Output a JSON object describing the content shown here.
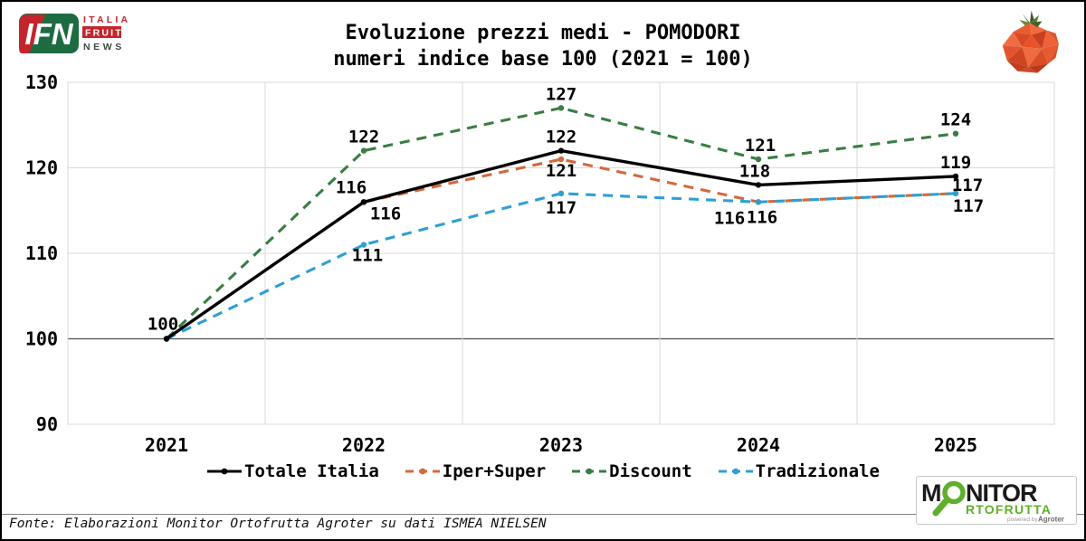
{
  "header": {
    "ifn_logo": {
      "acronym": "IFN",
      "word1": "ITALIA",
      "word2": "FRUIT",
      "word3": "NEWS"
    },
    "tomato_icon": "low-poly-tomato"
  },
  "chart_data": {
    "type": "line",
    "title": "Evoluzione prezzi medi - POMODORI",
    "subtitle": "numeri indice base 100 (2021 = 100)",
    "categories": [
      "2021",
      "2022",
      "2023",
      "2024",
      "2025"
    ],
    "series": [
      {
        "name": "Totale Italia",
        "values": [
          100,
          116,
          122,
          118,
          119
        ],
        "color": "#000000",
        "style": "solid"
      },
      {
        "name": "Iper+Super",
        "values": [
          100,
          116,
          121,
          116,
          117
        ],
        "color": "#D2693E",
        "style": "dashed"
      },
      {
        "name": "Discount",
        "values": [
          100,
          122,
          127,
          121,
          124
        ],
        "color": "#3A7D44",
        "style": "dashed"
      },
      {
        "name": "Tradizionale",
        "values": [
          100,
          111,
          117,
          116,
          117
        ],
        "color": "#2E9FD4",
        "style": "dashed"
      }
    ],
    "ylim": [
      90,
      130
    ],
    "yticks": [
      90,
      100,
      110,
      120,
      130
    ],
    "baseline_value": 100,
    "grid": true,
    "legend_position": "bottom"
  },
  "footer": {
    "source": "Fonte: Elaborazioni Monitor Ortofrutta Agroter su dati ISMEA NIELSEN",
    "monitor_logo": {
      "m": "M",
      "nitor": "NITOR",
      "line2": "RTOFRUTTA",
      "powered_by": "powered by",
      "agroter": "Agroter"
    }
  }
}
